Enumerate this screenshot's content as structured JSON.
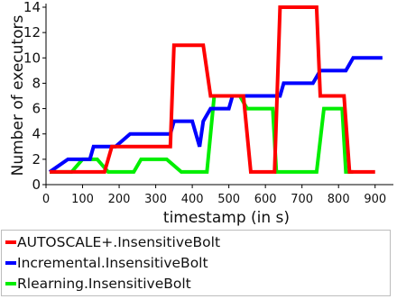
{
  "chart_data": {
    "type": "line",
    "xlabel": "timestamp (in s)",
    "ylabel": "Number of executors",
    "xlim": [
      0,
      950
    ],
    "ylim": [
      0,
      14
    ],
    "xticks": [
      0,
      100,
      200,
      300,
      400,
      500,
      600,
      700,
      800,
      900
    ],
    "yticks": [
      0,
      2,
      4,
      6,
      8,
      10,
      12,
      14
    ],
    "grid": false,
    "legend_placement": "below",
    "series": [
      {
        "name": "AUTOSCALE+.InsensitiveBolt",
        "color": "#ff0000",
        "points": [
          [
            10,
            1
          ],
          [
            160,
            1
          ],
          [
            180,
            3
          ],
          [
            340,
            3
          ],
          [
            350,
            11
          ],
          [
            430,
            11
          ],
          [
            450,
            7
          ],
          [
            540,
            7
          ],
          [
            560,
            1
          ],
          [
            625,
            1
          ],
          [
            640,
            14
          ],
          [
            740,
            14
          ],
          [
            750,
            7
          ],
          [
            815,
            7
          ],
          [
            830,
            1
          ],
          [
            900,
            1
          ]
        ]
      },
      {
        "name": "Incremental.InsensitiveBolt",
        "color": "#0000ff",
        "points": [
          [
            10,
            1
          ],
          [
            60,
            2
          ],
          [
            120,
            2
          ],
          [
            130,
            3
          ],
          [
            180,
            3
          ],
          [
            190,
            3
          ],
          [
            230,
            4
          ],
          [
            340,
            4
          ],
          [
            350,
            5
          ],
          [
            400,
            5
          ],
          [
            420,
            3
          ],
          [
            430,
            5
          ],
          [
            450,
            6
          ],
          [
            500,
            6
          ],
          [
            510,
            7
          ],
          [
            640,
            7
          ],
          [
            650,
            8
          ],
          [
            730,
            8
          ],
          [
            750,
            9
          ],
          [
            820,
            9
          ],
          [
            840,
            10
          ],
          [
            920,
            10
          ]
        ]
      },
      {
        "name": "Rlearning.InsensitiveBolt",
        "color": "#00ee00",
        "points": [
          [
            10,
            1
          ],
          [
            70,
            1
          ],
          [
            100,
            2
          ],
          [
            140,
            2
          ],
          [
            170,
            1
          ],
          [
            240,
            1
          ],
          [
            260,
            2
          ],
          [
            330,
            2
          ],
          [
            370,
            1
          ],
          [
            440,
            1
          ],
          [
            460,
            7
          ],
          [
            510,
            7
          ],
          [
            530,
            7
          ],
          [
            550,
            6
          ],
          [
            620,
            6
          ],
          [
            630,
            1
          ],
          [
            740,
            1
          ],
          [
            760,
            6
          ],
          [
            810,
            6
          ],
          [
            820,
            1
          ],
          [
            840,
            1
          ]
        ]
      }
    ]
  }
}
